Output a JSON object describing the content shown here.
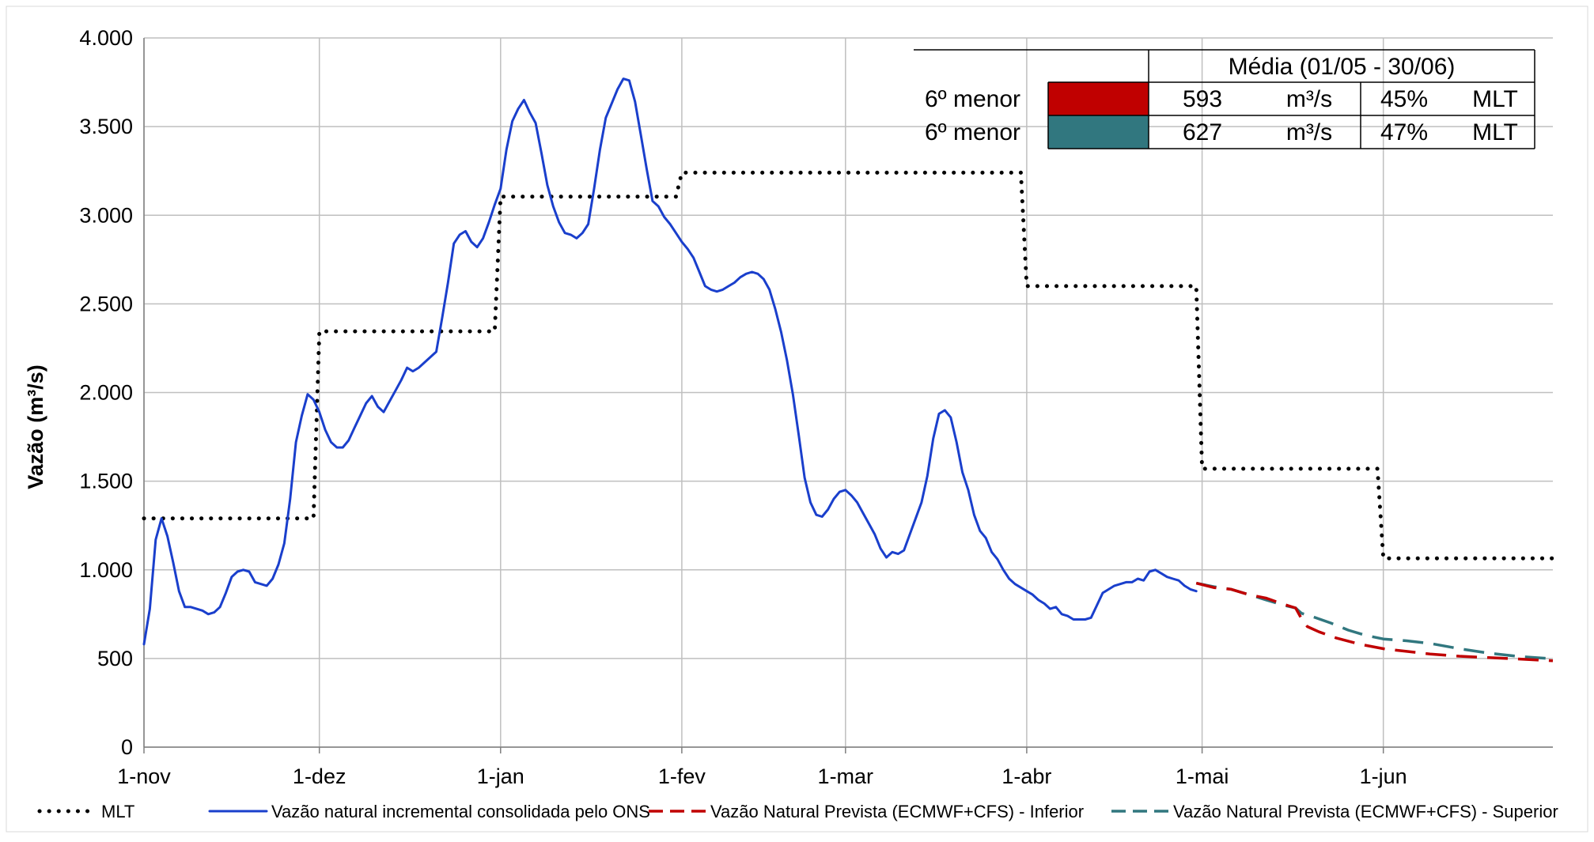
{
  "chart_data": {
    "type": "line",
    "ylabel": "Vazão (m³/s)",
    "xlabel": "",
    "ylim": [
      0,
      4000
    ],
    "y_ticks": [
      0,
      500,
      1000,
      1500,
      2000,
      2500,
      3000,
      3500,
      4000
    ],
    "y_tick_labels": [
      "0",
      "500",
      "1.000",
      "1.500",
      "2.000",
      "2.500",
      "3.000",
      "3.500",
      "4.000"
    ],
    "x_ticks": [
      {
        "day": 0,
        "label": "1-nov"
      },
      {
        "day": 30,
        "label": "1-dez"
      },
      {
        "day": 61,
        "label": "1-jan"
      },
      {
        "day": 92,
        "label": "1-fev"
      },
      {
        "day": 120,
        "label": "1-mar"
      },
      {
        "day": 151,
        "label": "1-abr"
      },
      {
        "day": 181,
        "label": "1-mai"
      },
      {
        "day": 212,
        "label": "1-jun"
      }
    ],
    "xlim": [
      0,
      241
    ],
    "grid": true,
    "legend_position": "bottom",
    "series": [
      {
        "name": "MLT",
        "style": "dotted",
        "color": "#000000",
        "points": [
          [
            0,
            1290
          ],
          [
            29,
            1290
          ],
          [
            30,
            2345
          ],
          [
            60,
            2345
          ],
          [
            61,
            3105
          ],
          [
            91,
            3105
          ],
          [
            92,
            3240
          ],
          [
            150,
            3240
          ],
          [
            151,
            2600
          ],
          [
            180,
            2600
          ],
          [
            181,
            1570
          ],
          [
            211,
            1570
          ],
          [
            212,
            1065
          ],
          [
            241,
            1065
          ]
        ]
      },
      {
        "name": "Vazão natural incremental consolidada pelo ONS",
        "style": "solid",
        "color": "#1a3fcc",
        "points": [
          [
            0,
            580
          ],
          [
            1,
            780
          ],
          [
            2,
            1170
          ],
          [
            3,
            1290
          ],
          [
            4,
            1190
          ],
          [
            5,
            1040
          ],
          [
            6,
            880
          ],
          [
            7,
            790
          ],
          [
            8,
            790
          ],
          [
            9,
            780
          ],
          [
            10,
            770
          ],
          [
            11,
            750
          ],
          [
            12,
            760
          ],
          [
            13,
            790
          ],
          [
            14,
            870
          ],
          [
            15,
            960
          ],
          [
            16,
            990
          ],
          [
            17,
            1000
          ],
          [
            18,
            990
          ],
          [
            19,
            930
          ],
          [
            20,
            920
          ],
          [
            21,
            910
          ],
          [
            22,
            950
          ],
          [
            23,
            1030
          ],
          [
            24,
            1150
          ],
          [
            25,
            1400
          ],
          [
            26,
            1720
          ],
          [
            27,
            1870
          ],
          [
            28,
            1990
          ],
          [
            29,
            1960
          ],
          [
            30,
            1890
          ],
          [
            31,
            1790
          ],
          [
            32,
            1720
          ],
          [
            33,
            1690
          ],
          [
            34,
            1690
          ],
          [
            35,
            1730
          ],
          [
            36,
            1800
          ],
          [
            37,
            1870
          ],
          [
            38,
            1940
          ],
          [
            39,
            1980
          ],
          [
            40,
            1920
          ],
          [
            41,
            1890
          ],
          [
            42,
            1950
          ],
          [
            43,
            2010
          ],
          [
            44,
            2070
          ],
          [
            45,
            2140
          ],
          [
            46,
            2120
          ],
          [
            47,
            2140
          ],
          [
            48,
            2170
          ],
          [
            49,
            2200
          ],
          [
            50,
            2230
          ],
          [
            51,
            2420
          ],
          [
            52,
            2620
          ],
          [
            53,
            2840
          ],
          [
            54,
            2890
          ],
          [
            55,
            2910
          ],
          [
            56,
            2850
          ],
          [
            57,
            2820
          ],
          [
            58,
            2870
          ],
          [
            59,
            2960
          ],
          [
            60,
            3060
          ],
          [
            61,
            3150
          ],
          [
            62,
            3370
          ],
          [
            63,
            3530
          ],
          [
            64,
            3600
          ],
          [
            65,
            3650
          ],
          [
            66,
            3580
          ],
          [
            67,
            3520
          ],
          [
            68,
            3350
          ],
          [
            69,
            3170
          ],
          [
            70,
            3050
          ],
          [
            71,
            2960
          ],
          [
            72,
            2900
          ],
          [
            73,
            2890
          ],
          [
            74,
            2870
          ],
          [
            75,
            2900
          ],
          [
            76,
            2950
          ],
          [
            77,
            3150
          ],
          [
            78,
            3370
          ],
          [
            79,
            3550
          ],
          [
            80,
            3630
          ],
          [
            81,
            3710
          ],
          [
            82,
            3770
          ],
          [
            83,
            3760
          ],
          [
            84,
            3640
          ],
          [
            85,
            3450
          ],
          [
            86,
            3260
          ],
          [
            87,
            3080
          ],
          [
            88,
            3050
          ],
          [
            89,
            2990
          ],
          [
            90,
            2950
          ],
          [
            91,
            2900
          ],
          [
            92,
            2850
          ],
          [
            93,
            2810
          ],
          [
            94,
            2760
          ],
          [
            95,
            2680
          ],
          [
            96,
            2600
          ],
          [
            97,
            2580
          ],
          [
            98,
            2570
          ],
          [
            99,
            2580
          ],
          [
            100,
            2600
          ],
          [
            101,
            2620
          ],
          [
            102,
            2650
          ],
          [
            103,
            2670
          ],
          [
            104,
            2680
          ],
          [
            105,
            2670
          ],
          [
            106,
            2640
          ],
          [
            107,
            2580
          ],
          [
            108,
            2470
          ],
          [
            109,
            2340
          ],
          [
            110,
            2180
          ],
          [
            111,
            1990
          ],
          [
            112,
            1760
          ],
          [
            113,
            1520
          ],
          [
            114,
            1380
          ],
          [
            115,
            1310
          ],
          [
            116,
            1300
          ],
          [
            117,
            1340
          ],
          [
            118,
            1400
          ],
          [
            119,
            1440
          ],
          [
            120,
            1450
          ],
          [
            121,
            1420
          ],
          [
            122,
            1380
          ],
          [
            123,
            1320
          ],
          [
            124,
            1260
          ],
          [
            125,
            1200
          ],
          [
            126,
            1120
          ],
          [
            127,
            1070
          ],
          [
            128,
            1100
          ],
          [
            129,
            1090
          ],
          [
            130,
            1110
          ],
          [
            131,
            1200
          ],
          [
            132,
            1290
          ],
          [
            133,
            1380
          ],
          [
            134,
            1530
          ],
          [
            135,
            1740
          ],
          [
            136,
            1880
          ],
          [
            137,
            1900
          ],
          [
            138,
            1860
          ],
          [
            139,
            1720
          ],
          [
            140,
            1550
          ],
          [
            141,
            1450
          ],
          [
            142,
            1310
          ],
          [
            143,
            1220
          ],
          [
            144,
            1180
          ],
          [
            145,
            1100
          ],
          [
            146,
            1060
          ],
          [
            147,
            1000
          ],
          [
            148,
            950
          ],
          [
            149,
            920
          ],
          [
            150,
            900
          ],
          [
            151,
            880
          ],
          [
            152,
            860
          ],
          [
            153,
            830
          ],
          [
            154,
            810
          ],
          [
            155,
            780
          ],
          [
            156,
            790
          ],
          [
            157,
            750
          ],
          [
            158,
            740
          ],
          [
            159,
            720
          ],
          [
            160,
            720
          ],
          [
            161,
            720
          ],
          [
            162,
            730
          ],
          [
            163,
            800
          ],
          [
            164,
            870
          ],
          [
            165,
            890
          ],
          [
            166,
            910
          ],
          [
            167,
            920
          ],
          [
            168,
            930
          ],
          [
            169,
            930
          ],
          [
            170,
            950
          ],
          [
            171,
            940
          ],
          [
            172,
            990
          ],
          [
            173,
            1000
          ],
          [
            174,
            980
          ],
          [
            175,
            960
          ],
          [
            176,
            950
          ],
          [
            177,
            940
          ],
          [
            178,
            910
          ],
          [
            179,
            890
          ],
          [
            180,
            880
          ]
        ]
      },
      {
        "name": "Vazão Natural Prevista (ECMWF+CFS) - Inferior",
        "style": "dashed",
        "color": "#c00000",
        "points": [
          [
            180,
            925
          ],
          [
            183,
            900
          ],
          [
            186,
            890
          ],
          [
            189,
            860
          ],
          [
            192,
            840
          ],
          [
            195,
            805
          ],
          [
            197,
            785
          ],
          [
            198,
            725
          ],
          [
            199,
            680
          ],
          [
            201,
            650
          ],
          [
            204,
            615
          ],
          [
            208,
            580
          ],
          [
            212,
            555
          ],
          [
            216,
            540
          ],
          [
            220,
            525
          ],
          [
            225,
            513
          ],
          [
            230,
            505
          ],
          [
            235,
            497
          ],
          [
            241,
            487
          ]
        ]
      },
      {
        "name": "Vazão Natural Prevista (ECMWF+CFS) - Superior",
        "style": "dashed",
        "color": "#31777f",
        "points": [
          [
            180,
            925
          ],
          [
            183,
            905
          ],
          [
            186,
            890
          ],
          [
            189,
            860
          ],
          [
            192,
            830
          ],
          [
            195,
            800
          ],
          [
            197,
            785
          ],
          [
            198,
            755
          ],
          [
            200,
            735
          ],
          [
            203,
            700
          ],
          [
            206,
            660
          ],
          [
            209,
            630
          ],
          [
            212,
            610
          ],
          [
            216,
            600
          ],
          [
            220,
            585
          ],
          [
            225,
            555
          ],
          [
            230,
            530
          ],
          [
            235,
            512
          ],
          [
            241,
            498
          ]
        ]
      }
    ]
  },
  "table": {
    "header": "Média (01/05 - 30/06)",
    "rows": [
      {
        "label": "6º menor",
        "color": "#c00000",
        "value": "593",
        "unit": "m³/s",
        "pct": "45%",
        "ref": "MLT"
      },
      {
        "label": "6º menor",
        "color": "#31777f",
        "value": "627",
        "unit": "m³/s",
        "pct": "47%",
        "ref": "MLT"
      }
    ]
  }
}
